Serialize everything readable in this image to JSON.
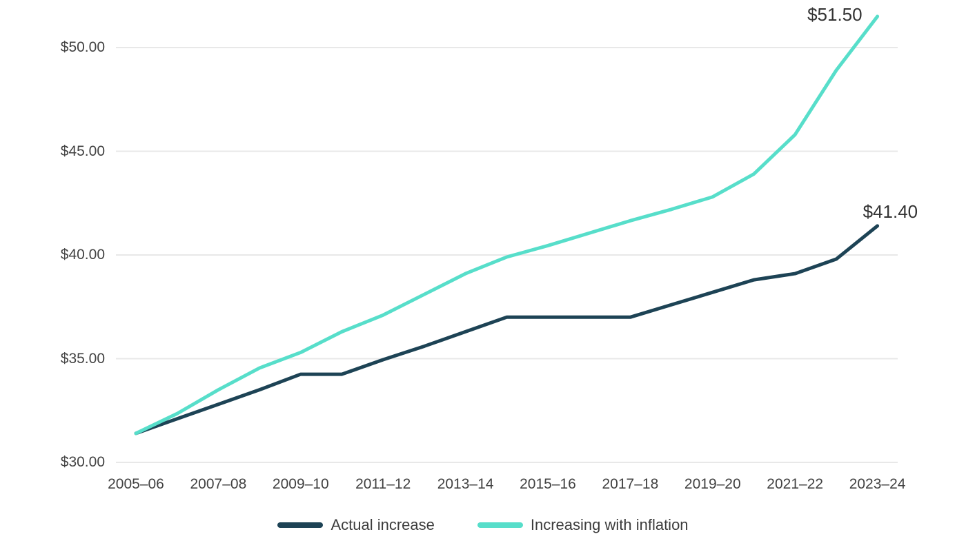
{
  "chart_data": {
    "type": "line",
    "title": "",
    "grid": true,
    "legend_position": "bottom",
    "x_categories": [
      "2005–06",
      "2006–07",
      "2007–08",
      "2008–09",
      "2009–10",
      "2010–11",
      "2011–12",
      "2012–13",
      "2013–14",
      "2014–15",
      "2015–16",
      "2016–17",
      "2017–18",
      "2018–19",
      "2019–20",
      "2020–21",
      "2021–22",
      "2022–23",
      "2023–24"
    ],
    "x_tick_step": 2,
    "y_axis": {
      "range_min": 30,
      "range_max": 52,
      "ticks": [
        {
          "label": "$30.00",
          "value": 30
        },
        {
          "label": "$35.00",
          "value": 35
        },
        {
          "label": "$40.00",
          "value": 40
        },
        {
          "label": "$45.00",
          "value": 45
        },
        {
          "label": "$50.00",
          "value": 50
        }
      ]
    },
    "series": [
      {
        "name": "Actual increase",
        "color": "#1d4355",
        "values": [
          31.4,
          32.1,
          32.8,
          33.5,
          34.25,
          34.25,
          34.95,
          35.6,
          36.3,
          37.0,
          37.0,
          37.0,
          37.0,
          37.6,
          38.2,
          38.8,
          39.1,
          39.8,
          41.4
        ]
      },
      {
        "name": "Increasing with inflation",
        "color": "#57deca",
        "values": [
          31.4,
          32.35,
          33.5,
          34.55,
          35.3,
          36.3,
          37.1,
          38.1,
          39.1,
          39.9,
          40.45,
          41.05,
          41.65,
          42.2,
          42.8,
          43.9,
          45.8,
          48.9,
          51.5
        ]
      }
    ],
    "annotations": [
      {
        "text": "$51.50",
        "series_index": 1,
        "placement": "above-left"
      },
      {
        "text": "$41.40",
        "series_index": 0,
        "placement": "above-right"
      }
    ],
    "colors": {
      "grid": "#e8e8e8",
      "axis_text": "#424242",
      "annotation_text": "#333333",
      "background": "#ffffff"
    }
  }
}
